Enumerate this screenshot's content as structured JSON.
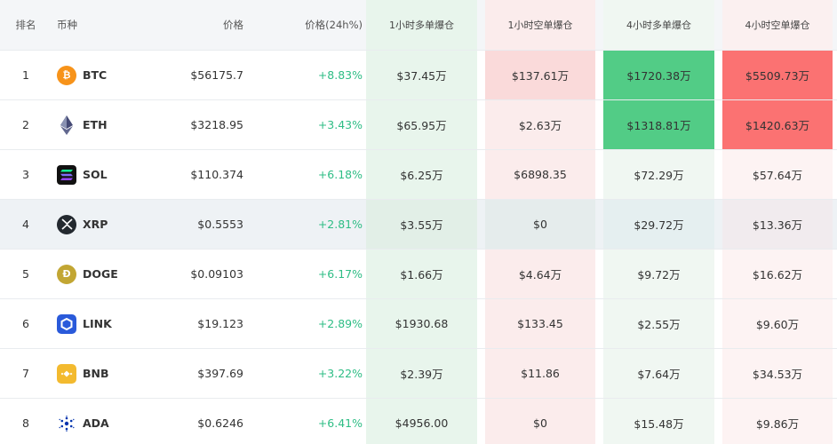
{
  "headers": {
    "rank": "排名",
    "coin": "币种",
    "price": "价格",
    "change": "价格(24h%)",
    "long_1h": "1小时多单爆仓",
    "short_1h": "1小时空单爆仓",
    "long_4h": "4小时多单爆仓",
    "short_4h": "4小时空单爆仓"
  },
  "colors": {
    "positive": "#2ebd85",
    "long_strong": "#52cc86",
    "short_strong": "#fb7272",
    "header_bg": "#f4f6f8"
  },
  "rows": [
    {
      "rank": "1",
      "symbol": "BTC",
      "icon": "bitcoin-icon",
      "price": "$56175.7",
      "change": "+8.83%",
      "long_1h": "$37.45万",
      "short_1h": "$137.61万",
      "long_4h": "$1720.38万",
      "short_4h": "$5509.73万"
    },
    {
      "rank": "2",
      "symbol": "ETH",
      "icon": "ethereum-icon",
      "price": "$3218.95",
      "change": "+3.43%",
      "long_1h": "$65.95万",
      "short_1h": "$2.63万",
      "long_4h": "$1318.81万",
      "short_4h": "$1420.63万"
    },
    {
      "rank": "3",
      "symbol": "SOL",
      "icon": "solana-icon",
      "price": "$110.374",
      "change": "+6.18%",
      "long_1h": "$6.25万",
      "short_1h": "$6898.35",
      "long_4h": "$72.29万",
      "short_4h": "$57.64万"
    },
    {
      "rank": "4",
      "symbol": "XRP",
      "icon": "xrp-icon",
      "price": "$0.5553",
      "change": "+2.81%",
      "long_1h": "$3.55万",
      "short_1h": "$0",
      "long_4h": "$29.72万",
      "short_4h": "$13.36万"
    },
    {
      "rank": "5",
      "symbol": "DOGE",
      "icon": "dogecoin-icon",
      "price": "$0.09103",
      "change": "+6.17%",
      "long_1h": "$1.66万",
      "short_1h": "$4.64万",
      "long_4h": "$9.72万",
      "short_4h": "$16.62万"
    },
    {
      "rank": "6",
      "symbol": "LINK",
      "icon": "chainlink-icon",
      "price": "$19.123",
      "change": "+2.89%",
      "long_1h": "$1930.68",
      "short_1h": "$133.45",
      "long_4h": "$2.55万",
      "short_4h": "$9.60万"
    },
    {
      "rank": "7",
      "symbol": "BNB",
      "icon": "bnb-icon",
      "price": "$397.69",
      "change": "+3.22%",
      "long_1h": "$2.39万",
      "short_1h": "$11.86",
      "long_4h": "$7.64万",
      "short_4h": "$34.53万"
    },
    {
      "rank": "8",
      "symbol": "ADA",
      "icon": "cardano-icon",
      "price": "$0.6246",
      "change": "+6.41%",
      "long_1h": "$4956.00",
      "short_1h": "$0",
      "long_4h": "$15.48万",
      "short_4h": "$9.86万"
    }
  ]
}
